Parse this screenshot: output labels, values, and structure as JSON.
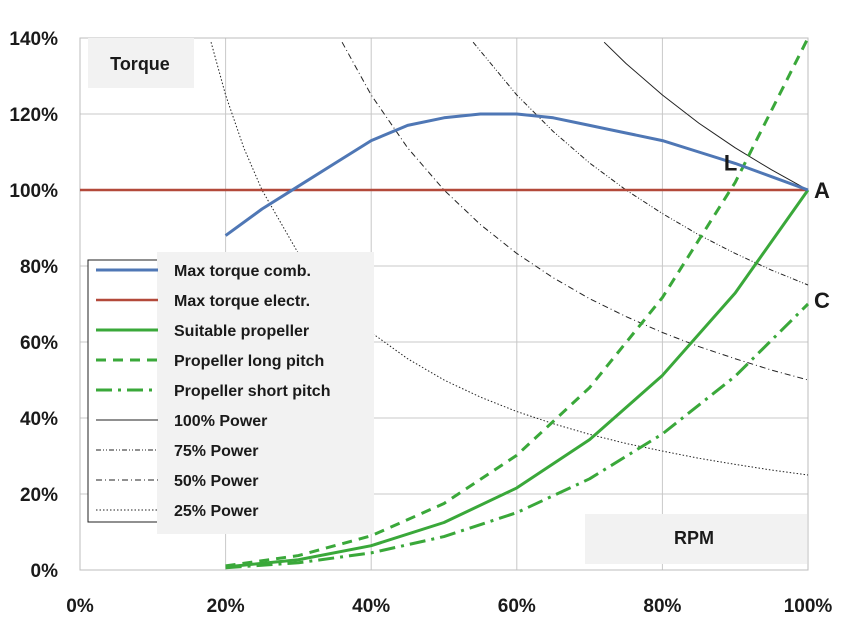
{
  "chart_data": {
    "type": "line",
    "title": "",
    "xlabel": "RPM",
    "ylabel": "Torque",
    "xlim": [
      0,
      100
    ],
    "ylim": [
      0,
      140
    ],
    "x_ticks": [
      "0%",
      "20%",
      "40%",
      "60%",
      "80%",
      "100%"
    ],
    "y_ticks": [
      "0%",
      "20%",
      "40%",
      "60%",
      "80%",
      "100%",
      "120%",
      "140%"
    ],
    "grid": true,
    "legend_position": "left-middle",
    "colors": {
      "max_torque_comb": "#4f77b5",
      "max_torque_electr": "#b3493a",
      "propeller": "#3aa83a",
      "power": "#222222"
    },
    "series": [
      {
        "name": "Max torque comb.",
        "style": "solid",
        "x": [
          20,
          25,
          30,
          35,
          40,
          45,
          50,
          55,
          60,
          65,
          70,
          75,
          80,
          85,
          90,
          95,
          100
        ],
        "y": [
          88,
          95,
          101,
          107,
          113,
          117,
          119,
          120,
          120,
          119,
          117,
          115,
          113,
          110,
          107,
          103.5,
          100
        ]
      },
      {
        "name": "Max torque electr.",
        "style": "solid",
        "x": [
          0,
          100
        ],
        "y": [
          100,
          100
        ]
      },
      {
        "name": "Suitable propeller",
        "style": "solid",
        "x": [
          20,
          30,
          40,
          50,
          60,
          70,
          80,
          90,
          100
        ],
        "y": [
          0.8,
          2.7,
          6.4,
          12.5,
          21.6,
          34.3,
          51.2,
          72.9,
          100
        ]
      },
      {
        "name": "Propeller long pitch",
        "style": "dashed",
        "x": [
          20,
          30,
          40,
          50,
          60,
          70,
          80,
          90,
          100
        ],
        "y": [
          1.1,
          3.8,
          9,
          17.5,
          30.2,
          48,
          71.7,
          102,
          140
        ]
      },
      {
        "name": "Propeller short pitch",
        "style": "dashdot",
        "x": [
          20,
          30,
          40,
          50,
          60,
          70,
          80,
          90,
          100
        ],
        "y": [
          0.6,
          1.9,
          4.5,
          8.8,
          15.1,
          24,
          35.8,
          51,
          70
        ]
      },
      {
        "name": "100% Power",
        "style": "thin-solid",
        "x": [
          72,
          75,
          80,
          85,
          90,
          95,
          100
        ],
        "y": [
          138.9,
          133.3,
          125,
          117.6,
          111.1,
          105.3,
          100
        ]
      },
      {
        "name": "75% Power",
        "style": "thin-dashdotdot",
        "x": [
          54,
          60,
          65,
          70,
          75,
          80,
          85,
          90,
          95,
          100
        ],
        "y": [
          138.9,
          125,
          115.4,
          107.1,
          100,
          93.8,
          88.2,
          83.3,
          78.9,
          75
        ]
      },
      {
        "name": "50% Power",
        "style": "thin-dashdot",
        "x": [
          36,
          40,
          45,
          50,
          55,
          60,
          65,
          70,
          75,
          80,
          85,
          90,
          95,
          100
        ],
        "y": [
          138.9,
          125,
          111.1,
          100,
          90.9,
          83.3,
          76.9,
          71.4,
          66.7,
          62.5,
          58.8,
          55.6,
          52.6,
          50
        ]
      },
      {
        "name": "25% Power",
        "style": "thin-dotted",
        "x": [
          18,
          20,
          22.5,
          25,
          30,
          35,
          40,
          45,
          50,
          55,
          60,
          65,
          70,
          75,
          80,
          85,
          90,
          95,
          100
        ],
        "y": [
          138.9,
          125,
          111.1,
          100,
          83.3,
          71.4,
          62.5,
          55.6,
          50,
          45.5,
          41.7,
          38.5,
          35.7,
          33.3,
          31.3,
          29.4,
          27.8,
          26.3,
          25
        ]
      }
    ],
    "annotations": [
      {
        "text": "A",
        "x": 100,
        "y": 100
      },
      {
        "text": "L",
        "x": 89,
        "y": 103
      },
      {
        "text": "C",
        "x": 100,
        "y": 70
      }
    ]
  }
}
